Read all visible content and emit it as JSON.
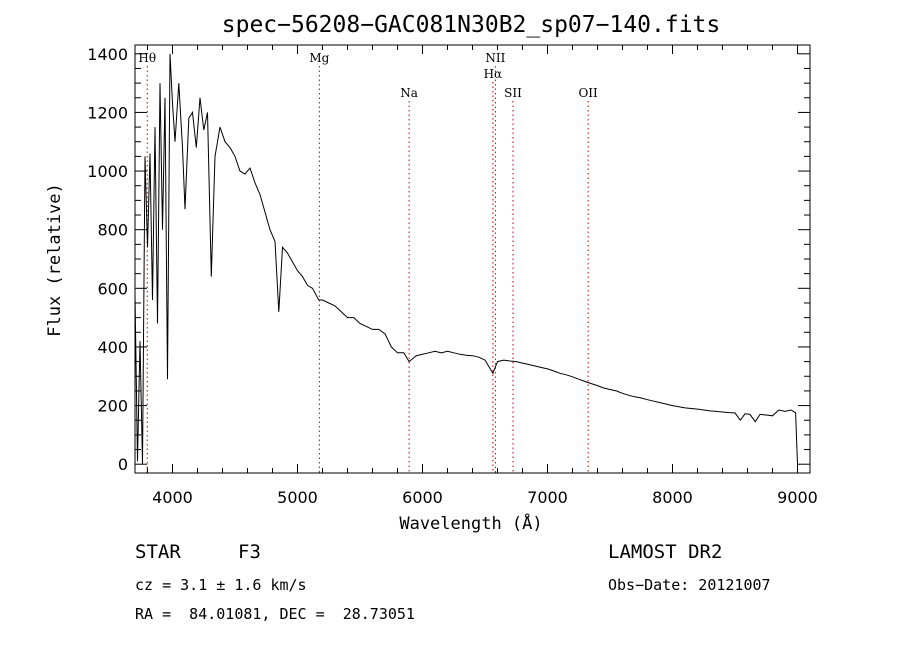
{
  "chart_data": {
    "type": "line",
    "title": "spec−56208−GAC081N30B2_sp07−140.fits",
    "xlabel": "Wavelength (Å)",
    "ylabel": "Flux (relative)",
    "xlim": [
      3700,
      9100
    ],
    "ylim": [
      -30,
      1430
    ],
    "x_ticks": [
      4000,
      5000,
      6000,
      7000,
      8000,
      9000
    ],
    "y_ticks": [
      0,
      200,
      400,
      600,
      800,
      1000,
      1200,
      1400
    ],
    "grid": false,
    "line_color": "#000000",
    "marker_color": "#cc0000",
    "spectral_lines": [
      {
        "label": "Hθ",
        "wavelength": 3798,
        "row": 0
      },
      {
        "label": "Mg",
        "wavelength": 5175,
        "row": 0
      },
      {
        "label": "Na",
        "wavelength": 5893,
        "row": 2
      },
      {
        "label": "NII",
        "wavelength": 6583,
        "row": 0
      },
      {
        "label": "Hα",
        "wavelength": 6563,
        "row": 1
      },
      {
        "label": "SII",
        "wavelength": 6724,
        "row": 2
      },
      {
        "label": "OII",
        "wavelength": 7325,
        "row": 2
      }
    ],
    "series": [
      {
        "values": [
          [
            3700,
            580
          ],
          [
            3720,
            10
          ],
          [
            3740,
            420
          ],
          [
            3760,
            0
          ],
          [
            3780,
            1050
          ],
          [
            3800,
            740
          ],
          [
            3820,
            1060
          ],
          [
            3840,
            560
          ],
          [
            3860,
            1150
          ],
          [
            3880,
            480
          ],
          [
            3900,
            1300
          ],
          [
            3920,
            800
          ],
          [
            3940,
            1250
          ],
          [
            3960,
            290
          ],
          [
            3980,
            1400
          ],
          [
            4000,
            1230
          ],
          [
            4020,
            1100
          ],
          [
            4050,
            1300
          ],
          [
            4080,
            1080
          ],
          [
            4100,
            870
          ],
          [
            4130,
            1180
          ],
          [
            4160,
            1200
          ],
          [
            4190,
            1080
          ],
          [
            4220,
            1250
          ],
          [
            4250,
            1140
          ],
          [
            4280,
            1200
          ],
          [
            4310,
            640
          ],
          [
            4340,
            1050
          ],
          [
            4380,
            1150
          ],
          [
            4420,
            1100
          ],
          [
            4460,
            1080
          ],
          [
            4500,
            1050
          ],
          [
            4540,
            1000
          ],
          [
            4580,
            990
          ],
          [
            4620,
            1010
          ],
          [
            4660,
            960
          ],
          [
            4700,
            920
          ],
          [
            4740,
            860
          ],
          [
            4780,
            800
          ],
          [
            4820,
            760
          ],
          [
            4850,
            520
          ],
          [
            4880,
            740
          ],
          [
            4920,
            720
          ],
          [
            4960,
            690
          ],
          [
            5000,
            660
          ],
          [
            5040,
            640
          ],
          [
            5080,
            610
          ],
          [
            5120,
            600
          ],
          [
            5170,
            560
          ],
          [
            5200,
            560
          ],
          [
            5250,
            550
          ],
          [
            5300,
            540
          ],
          [
            5350,
            520
          ],
          [
            5400,
            500
          ],
          [
            5450,
            500
          ],
          [
            5500,
            480
          ],
          [
            5550,
            470
          ],
          [
            5600,
            460
          ],
          [
            5650,
            460
          ],
          [
            5700,
            445
          ],
          [
            5750,
            400
          ],
          [
            5800,
            380
          ],
          [
            5850,
            380
          ],
          [
            5893,
            350
          ],
          [
            5950,
            370
          ],
          [
            6000,
            375
          ],
          [
            6050,
            380
          ],
          [
            6100,
            385
          ],
          [
            6150,
            380
          ],
          [
            6200,
            385
          ],
          [
            6250,
            380
          ],
          [
            6300,
            375
          ],
          [
            6350,
            372
          ],
          [
            6400,
            370
          ],
          [
            6450,
            365
          ],
          [
            6500,
            355
          ],
          [
            6563,
            310
          ],
          [
            6600,
            350
          ],
          [
            6650,
            355
          ],
          [
            6700,
            352
          ],
          [
            6750,
            350
          ],
          [
            6800,
            345
          ],
          [
            6850,
            340
          ],
          [
            6900,
            335
          ],
          [
            6950,
            330
          ],
          [
            7000,
            325
          ],
          [
            7050,
            318
          ],
          [
            7100,
            310
          ],
          [
            7150,
            305
          ],
          [
            7200,
            298
          ],
          [
            7250,
            290
          ],
          [
            7300,
            282
          ],
          [
            7350,
            275
          ],
          [
            7400,
            268
          ],
          [
            7450,
            260
          ],
          [
            7500,
            255
          ],
          [
            7550,
            250
          ],
          [
            7600,
            242
          ],
          [
            7650,
            235
          ],
          [
            7700,
            230
          ],
          [
            7750,
            226
          ],
          [
            7800,
            220
          ],
          [
            7850,
            215
          ],
          [
            7900,
            210
          ],
          [
            7950,
            205
          ],
          [
            8000,
            200
          ],
          [
            8050,
            196
          ],
          [
            8100,
            192
          ],
          [
            8150,
            190
          ],
          [
            8200,
            188
          ],
          [
            8250,
            185
          ],
          [
            8300,
            182
          ],
          [
            8350,
            180
          ],
          [
            8400,
            178
          ],
          [
            8450,
            176
          ],
          [
            8500,
            175
          ],
          [
            8542,
            150
          ],
          [
            8580,
            172
          ],
          [
            8620,
            170
          ],
          [
            8662,
            145
          ],
          [
            8700,
            170
          ],
          [
            8750,
            168
          ],
          [
            8800,
            165
          ],
          [
            8850,
            185
          ],
          [
            8900,
            180
          ],
          [
            8950,
            185
          ],
          [
            8985,
            175
          ],
          [
            9000,
            0
          ]
        ]
      }
    ]
  },
  "info": {
    "object_class": "STAR",
    "subclass": "F3",
    "survey": "LAMOST DR2",
    "cz": "cz = 3.1 ± 1.6 km/s",
    "obs_date": "Obs−Date: 20121007",
    "coords": "RA =  84.01081, DEC =  28.73051"
  }
}
